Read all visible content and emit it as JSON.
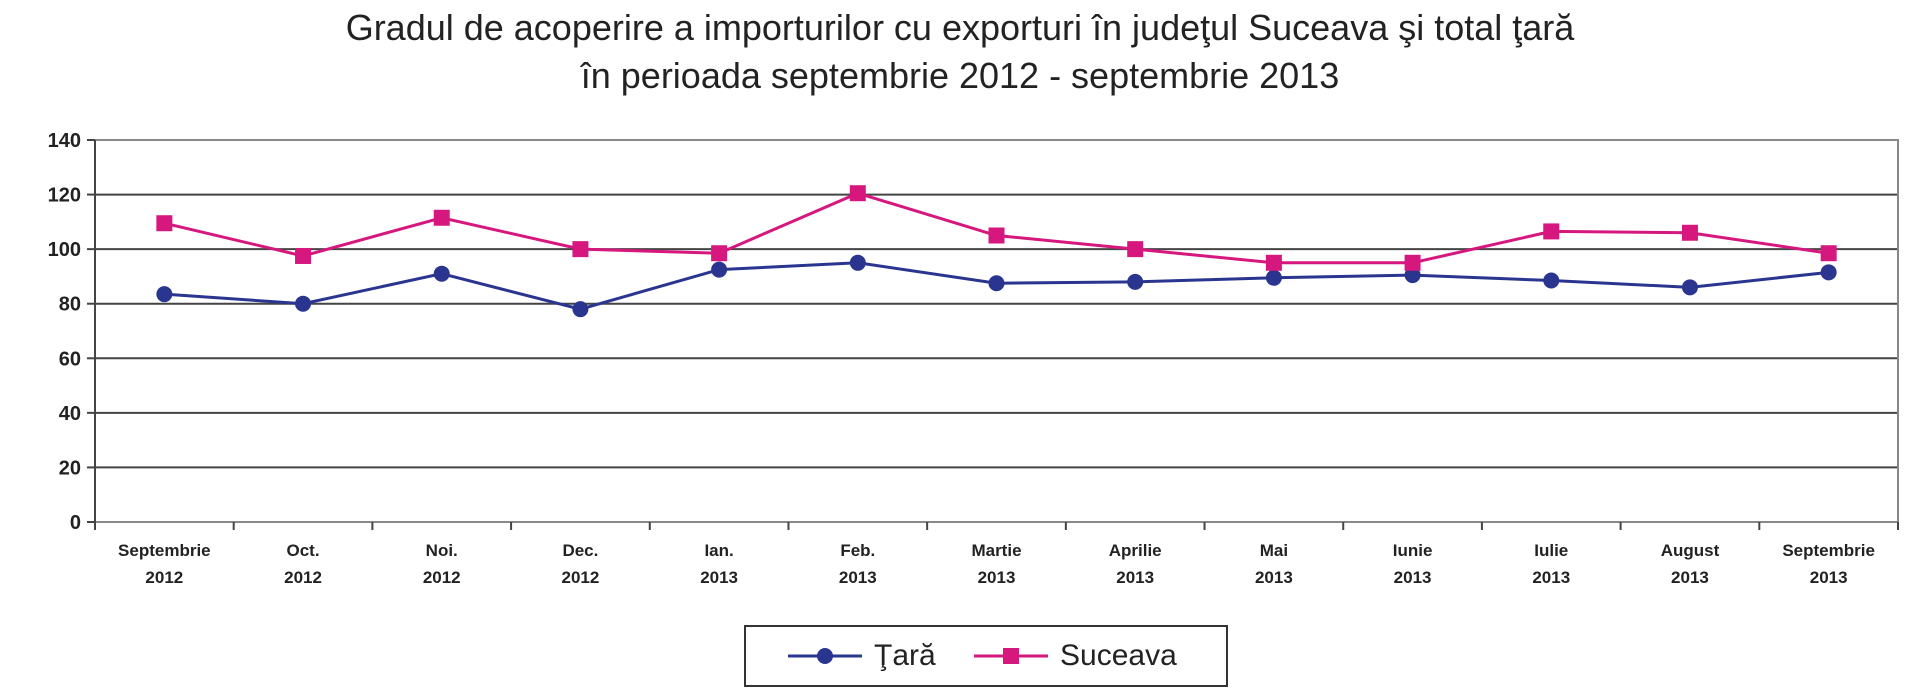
{
  "chart_data": {
    "type": "line",
    "title": "Gradul de acoperire a importurilor cu exporturi în judeţul Suceava şi total ţară",
    "subtitle": "în perioada septembrie 2012 - septembrie 2013",
    "xlabel": "",
    "ylabel": "",
    "ylim": [
      0,
      140
    ],
    "yticks": [
      0,
      20,
      40,
      60,
      80,
      100,
      120,
      140
    ],
    "grid": true,
    "legend_position": "bottom",
    "categories": [
      [
        "Septembrie",
        "2012"
      ],
      [
        "Oct.",
        "2012"
      ],
      [
        "Noi.",
        "2012"
      ],
      [
        "Dec.",
        "2012"
      ],
      [
        "Ian.",
        "2013"
      ],
      [
        "Feb.",
        "2013"
      ],
      [
        "Martie",
        "2013"
      ],
      [
        "Aprilie",
        "2013"
      ],
      [
        "Mai",
        "2013"
      ],
      [
        "Iunie",
        "2013"
      ],
      [
        "Iulie",
        "2013"
      ],
      [
        "August",
        "2013"
      ],
      [
        "Septembrie",
        "2013"
      ]
    ],
    "series": [
      {
        "name": "Ţară",
        "color": "#2a3590",
        "marker": "circle",
        "values": [
          83.5,
          80,
          91,
          78,
          92.5,
          95,
          87.5,
          88,
          89.5,
          90.5,
          88.5,
          86,
          91.5
        ]
      },
      {
        "name": "Suceava",
        "color": "#d6177e",
        "marker": "square",
        "values": [
          109.5,
          97.5,
          111.5,
          100,
          98.5,
          120.5,
          105,
          100,
          95,
          95,
          106.5,
          106,
          98.5
        ]
      }
    ]
  }
}
